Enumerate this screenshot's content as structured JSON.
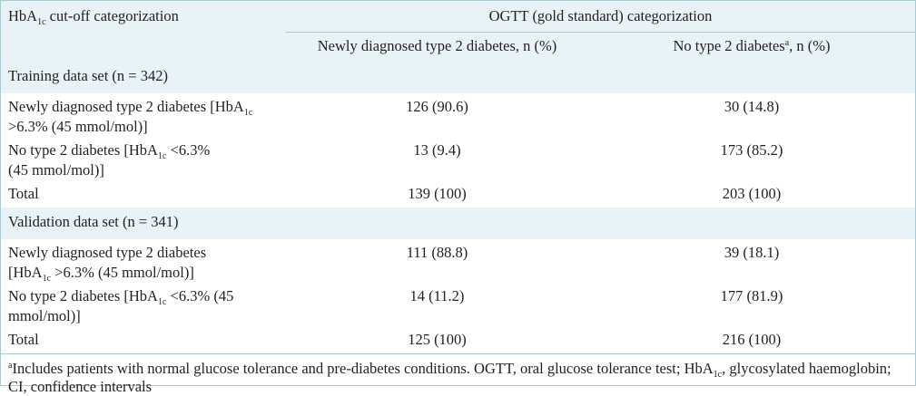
{
  "header": {
    "col1_label": "HbA",
    "col1_sub": "1c",
    "col1_rest": " cut-off categorization",
    "group_label": "OGTT (gold standard) categorization",
    "sub_col2": "Newly diagnosed type 2 diabetes, n (%)",
    "sub_col3_pre": "No type 2 diabetes",
    "sub_col3_sup": "a",
    "sub_col3_post": ", n (%)"
  },
  "training": {
    "section_label": "Training data set (n = 342)",
    "row1": {
      "line1_pre": "Newly diagnosed type 2 diabetes [HbA",
      "sub": "1c",
      "line2": ">6.3% (45 mmol/mol)]",
      "col2": "126 (90.6)",
      "col3": "30 (14.8)"
    },
    "row2": {
      "line1_pre": "No type 2 diabetes [HbA",
      "sub": "1c",
      "line1_post": " <6.3%",
      "line2": "(45 mmol/mol)]",
      "col2": "13 (9.4)",
      "col3": "173 (85.2)"
    },
    "total": {
      "label": "Total",
      "col2": "139 (100)",
      "col3": "203 (100)"
    }
  },
  "validation": {
    "section_label": "Validation data set (n = 341)",
    "row1": {
      "line1": "Newly diagnosed type 2 diabetes",
      "line2_pre": "[HbA",
      "sub": "1c",
      "line2_post": " >6.3% (45 mmol/mol)]",
      "col2": "111 (88.8)",
      "col3": "39 (18.1)"
    },
    "row2": {
      "line1_pre": "No type 2 diabetes [HbA",
      "sub": "1c",
      "line1_post": " <6.3% (45",
      "line2": "mmol/mol)]",
      "col2": "14 (11.2)",
      "col3": "177 (81.9)"
    },
    "total": {
      "label": "Total",
      "col2": "125 (100)",
      "col3": "216 (100)"
    }
  },
  "footnote": {
    "sup": "a",
    "text_pre": "Includes patients with normal glucose tolerance and pre-diabetes conditions. OGTT, oral glucose tolerance test; HbA",
    "sub": "1c",
    "text_post": ", glycosylated haemoglobin; CI, confidence intervals"
  }
}
